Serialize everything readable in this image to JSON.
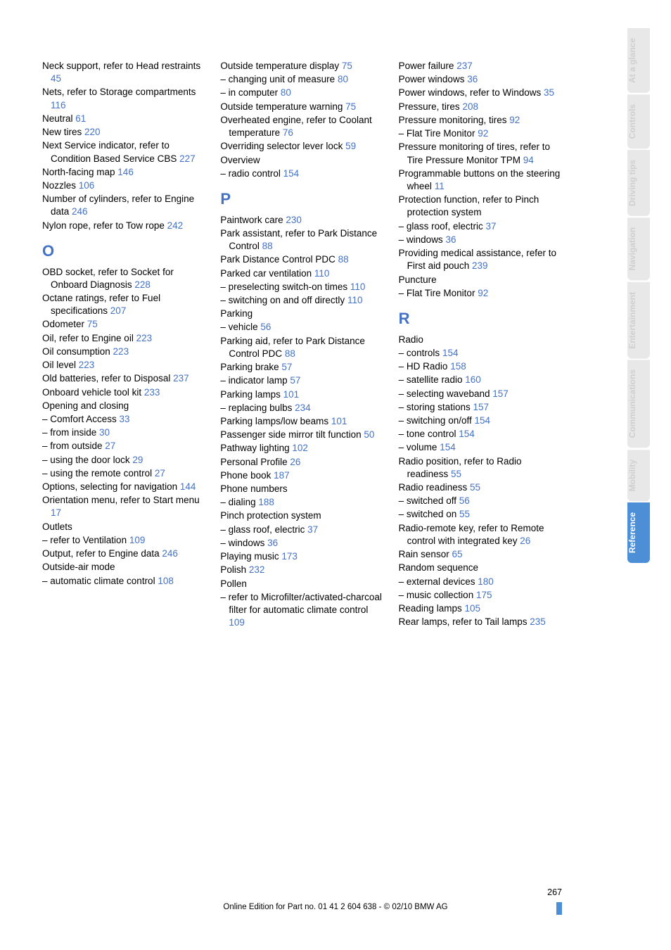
{
  "colors": {
    "link": "#4472c4",
    "text": "#000000",
    "tab_inactive_bg": "#e8e8e8",
    "tab_inactive_fg": "#cfcfcf",
    "tab_active_bg": "#4d8fd6",
    "tab_active_fg": "#ffffff",
    "background": "#ffffff"
  },
  "page_number": "267",
  "footer_text": "Online Edition for Part no. 01 41 2 604 638 - © 02/10 BMW AG",
  "tabs": [
    {
      "label": "At a glance",
      "active": false
    },
    {
      "label": "Controls",
      "active": false
    },
    {
      "label": "Driving tips",
      "active": false
    },
    {
      "label": "Navigation",
      "active": false
    },
    {
      "label": "Entertainment",
      "active": false
    },
    {
      "label": "Communications",
      "active": false
    },
    {
      "label": "Mobility",
      "active": false
    },
    {
      "label": "Reference",
      "active": true
    }
  ],
  "columns": [
    [
      {
        "t": "entry",
        "text": "Neck support, refer to Head restraints ",
        "page": "45"
      },
      {
        "t": "entry",
        "text": "Nets, refer to Storage compartments ",
        "page": "116"
      },
      {
        "t": "entry",
        "text": "Neutral ",
        "page": "61"
      },
      {
        "t": "entry",
        "text": "New tires ",
        "page": "220"
      },
      {
        "t": "entry",
        "text": "Next Service indicator, refer to Condition Based Service CBS ",
        "page": "227"
      },
      {
        "t": "entry",
        "text": "North-facing map ",
        "page": "146"
      },
      {
        "t": "entry",
        "text": "Nozzles ",
        "page": "106"
      },
      {
        "t": "entry",
        "text": "Number of cylinders, refer to Engine data ",
        "page": "246"
      },
      {
        "t": "entry",
        "text": "Nylon rope, refer to Tow rope ",
        "page": "242"
      },
      {
        "t": "letter",
        "text": "O"
      },
      {
        "t": "entry",
        "text": "OBD socket, refer to Socket for Onboard Diagnosis ",
        "page": "228"
      },
      {
        "t": "entry",
        "text": "Octane ratings, refer to Fuel specifications ",
        "page": "207"
      },
      {
        "t": "entry",
        "text": "Odometer ",
        "page": "75"
      },
      {
        "t": "entry",
        "text": "Oil, refer to Engine oil ",
        "page": "223"
      },
      {
        "t": "entry",
        "text": "Oil consumption ",
        "page": "223"
      },
      {
        "t": "entry",
        "text": "Oil level ",
        "page": "223"
      },
      {
        "t": "entry",
        "text": "Old batteries, refer to Disposal ",
        "page": "237"
      },
      {
        "t": "entry",
        "text": "Onboard vehicle tool kit ",
        "page": "233"
      },
      {
        "t": "entry",
        "text": "Opening and closing",
        "page": ""
      },
      {
        "t": "entry",
        "text": "– Comfort Access ",
        "page": "33"
      },
      {
        "t": "entry",
        "text": "– from inside ",
        "page": "30"
      },
      {
        "t": "entry",
        "text": "– from outside ",
        "page": "27"
      },
      {
        "t": "entry",
        "text": "– using the door lock ",
        "page": "29"
      },
      {
        "t": "entry",
        "text": "– using the remote control ",
        "page": "27"
      },
      {
        "t": "entry",
        "text": "Options, selecting for navigation ",
        "page": "144"
      },
      {
        "t": "entry",
        "text": "Orientation menu, refer to Start menu ",
        "page": "17"
      },
      {
        "t": "entry",
        "text": "Outlets",
        "page": ""
      },
      {
        "t": "entry",
        "text": "– refer to Ventilation ",
        "page": "109"
      },
      {
        "t": "entry",
        "text": "Output, refer to Engine data ",
        "page": "246"
      },
      {
        "t": "entry",
        "text": "Outside-air mode",
        "page": ""
      },
      {
        "t": "entry",
        "text": "– automatic climate control ",
        "page": "108"
      }
    ],
    [
      {
        "t": "entry",
        "text": "Outside temperature display ",
        "page": "75"
      },
      {
        "t": "entry",
        "text": "– changing unit of measure ",
        "page": "80"
      },
      {
        "t": "entry",
        "text": "– in computer ",
        "page": "80"
      },
      {
        "t": "entry",
        "text": "Outside temperature warning ",
        "page": "75"
      },
      {
        "t": "entry",
        "text": "Overheated engine, refer to Coolant temperature ",
        "page": "76"
      },
      {
        "t": "entry",
        "text": "Overriding selector lever lock ",
        "page": "59"
      },
      {
        "t": "entry",
        "text": "Overview",
        "page": ""
      },
      {
        "t": "entry",
        "text": "– radio control ",
        "page": "154"
      },
      {
        "t": "letter",
        "text": "P"
      },
      {
        "t": "entry",
        "text": "Paintwork care ",
        "page": "230"
      },
      {
        "t": "entry",
        "text": "Park assistant, refer to Park Distance Control ",
        "page": "88"
      },
      {
        "t": "entry",
        "text": "Park Distance Control PDC ",
        "page": "88"
      },
      {
        "t": "entry",
        "text": "Parked car ventilation ",
        "page": "110"
      },
      {
        "t": "entry",
        "text": "– preselecting switch-on times ",
        "page": "110"
      },
      {
        "t": "entry",
        "text": "– switching on and off directly ",
        "page": "110"
      },
      {
        "t": "entry",
        "text": "Parking",
        "page": ""
      },
      {
        "t": "entry",
        "text": "– vehicle ",
        "page": "56"
      },
      {
        "t": "entry",
        "text": "Parking aid, refer to Park Distance Control PDC ",
        "page": "88"
      },
      {
        "t": "entry",
        "text": "Parking brake ",
        "page": "57"
      },
      {
        "t": "entry",
        "text": "– indicator lamp ",
        "page": "57"
      },
      {
        "t": "entry",
        "text": "Parking lamps ",
        "page": "101"
      },
      {
        "t": "entry",
        "text": "– replacing bulbs ",
        "page": "234"
      },
      {
        "t": "entry",
        "text": "Parking lamps/low beams ",
        "page": "101"
      },
      {
        "t": "entry",
        "text": "Passenger side mirror tilt function ",
        "page": "50"
      },
      {
        "t": "entry",
        "text": "Pathway lighting ",
        "page": "102"
      },
      {
        "t": "entry",
        "text": "Personal Profile ",
        "page": "26"
      },
      {
        "t": "entry",
        "text": "Phone book ",
        "page": "187"
      },
      {
        "t": "entry",
        "text": "Phone numbers",
        "page": ""
      },
      {
        "t": "entry",
        "text": "– dialing ",
        "page": "188"
      },
      {
        "t": "entry",
        "text": "Pinch protection system",
        "page": ""
      },
      {
        "t": "entry",
        "text": "– glass roof, electric ",
        "page": "37"
      },
      {
        "t": "entry",
        "text": "– windows ",
        "page": "36"
      },
      {
        "t": "entry",
        "text": "Playing music ",
        "page": "173"
      },
      {
        "t": "entry",
        "text": "Polish ",
        "page": "232"
      },
      {
        "t": "entry",
        "text": "Pollen",
        "page": ""
      },
      {
        "t": "entry",
        "text": "– refer to Microfilter/activated-charcoal filter for automatic climate control ",
        "page": "109"
      }
    ],
    [
      {
        "t": "entry",
        "text": "Power failure ",
        "page": "237"
      },
      {
        "t": "entry",
        "text": "Power windows ",
        "page": "36"
      },
      {
        "t": "entry",
        "text": "Power windows, refer to Windows ",
        "page": "35"
      },
      {
        "t": "entry",
        "text": "Pressure, tires ",
        "page": "208"
      },
      {
        "t": "entry",
        "text": "Pressure monitoring, tires ",
        "page": "92"
      },
      {
        "t": "entry",
        "text": "– Flat Tire Monitor ",
        "page": "92"
      },
      {
        "t": "entry",
        "text": "Pressure monitoring of tires, refer to Tire Pressure Monitor TPM ",
        "page": "94"
      },
      {
        "t": "entry",
        "text": "Programmable buttons on the steering wheel ",
        "page": "11"
      },
      {
        "t": "entry",
        "text": "Protection function, refer to Pinch protection system",
        "page": ""
      },
      {
        "t": "entry",
        "text": "– glass roof, electric ",
        "page": "37"
      },
      {
        "t": "entry",
        "text": "– windows ",
        "page": "36"
      },
      {
        "t": "entry",
        "text": "Providing medical assistance, refer to First aid pouch ",
        "page": "239"
      },
      {
        "t": "entry",
        "text": "Puncture",
        "page": ""
      },
      {
        "t": "entry",
        "text": "– Flat Tire Monitor ",
        "page": "92"
      },
      {
        "t": "letter",
        "text": "R"
      },
      {
        "t": "entry",
        "text": "Radio",
        "page": ""
      },
      {
        "t": "entry",
        "text": "– controls ",
        "page": "154"
      },
      {
        "t": "entry",
        "text": "– HD Radio ",
        "page": "158"
      },
      {
        "t": "entry",
        "text": "– satellite radio ",
        "page": "160"
      },
      {
        "t": "entry",
        "text": "– selecting waveband ",
        "page": "157"
      },
      {
        "t": "entry",
        "text": "– storing stations ",
        "page": "157"
      },
      {
        "t": "entry",
        "text": "– switching on/off ",
        "page": "154"
      },
      {
        "t": "entry",
        "text": "– tone control ",
        "page": "154"
      },
      {
        "t": "entry",
        "text": "– volume ",
        "page": "154"
      },
      {
        "t": "entry",
        "text": "Radio position, refer to Radio readiness ",
        "page": "55"
      },
      {
        "t": "entry",
        "text": "Radio readiness ",
        "page": "55"
      },
      {
        "t": "entry",
        "text": "– switched off ",
        "page": "56"
      },
      {
        "t": "entry",
        "text": "– switched on ",
        "page": "55"
      },
      {
        "t": "entry",
        "text": "Radio-remote key, refer to Remote control with integrated key ",
        "page": "26"
      },
      {
        "t": "entry",
        "text": "Rain sensor ",
        "page": "65"
      },
      {
        "t": "entry",
        "text": "Random sequence",
        "page": ""
      },
      {
        "t": "entry",
        "text": "– external devices ",
        "page": "180"
      },
      {
        "t": "entry",
        "text": "– music collection ",
        "page": "175"
      },
      {
        "t": "entry",
        "text": "Reading lamps ",
        "page": "105"
      },
      {
        "t": "entry",
        "text": "Rear lamps, refer to Tail lamps ",
        "page": "235"
      }
    ]
  ]
}
